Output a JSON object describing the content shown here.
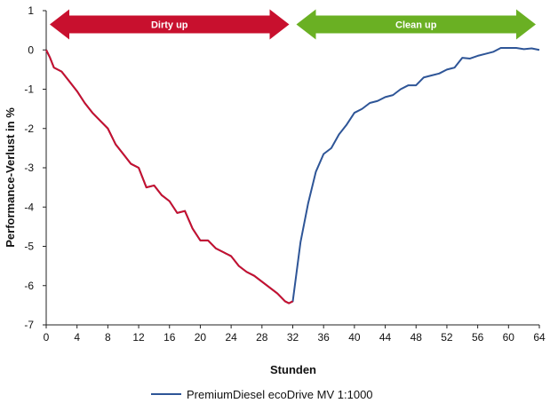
{
  "chart_data": {
    "type": "line",
    "title": "",
    "xlabel": "Stunden",
    "ylabel": "Performance-Verlust in %",
    "xlim": [
      0,
      64
    ],
    "ylim": [
      -7,
      1
    ],
    "x_ticks": [
      0,
      4,
      8,
      12,
      16,
      20,
      24,
      28,
      32,
      36,
      40,
      44,
      48,
      52,
      56,
      60,
      64
    ],
    "y_ticks": [
      1,
      0,
      -1,
      -2,
      -3,
      -4,
      -5,
      -6,
      -7
    ],
    "grid": false,
    "legend_position": "bottom",
    "phases": [
      {
        "label": "Dirty up",
        "x_start": 0,
        "x_end": 32,
        "color": "#c8102e"
      },
      {
        "label": "Clean up",
        "x_start": 32,
        "x_end": 64,
        "color": "#6ab023"
      }
    ],
    "series": [
      {
        "name": "PremiumDiesel ecoDrive MV 1:1000",
        "color": "#2e5597",
        "highlight_color": "#c8102e",
        "highlight_until_x": 32,
        "points": [
          [
            0,
            0
          ],
          [
            0.5,
            -0.2
          ],
          [
            1,
            -0.45
          ],
          [
            2,
            -0.55
          ],
          [
            3,
            -0.8
          ],
          [
            4,
            -1.05
          ],
          [
            5,
            -1.35
          ],
          [
            6,
            -1.6
          ],
          [
            7,
            -1.8
          ],
          [
            8,
            -2.0
          ],
          [
            9,
            -2.4
          ],
          [
            10,
            -2.65
          ],
          [
            11,
            -2.9
          ],
          [
            12,
            -3.0
          ],
          [
            13,
            -3.5
          ],
          [
            14,
            -3.45
          ],
          [
            15,
            -3.7
          ],
          [
            16,
            -3.85
          ],
          [
            17,
            -4.15
          ],
          [
            18,
            -4.1
          ],
          [
            19,
            -4.55
          ],
          [
            20,
            -4.85
          ],
          [
            21,
            -4.85
          ],
          [
            22,
            -5.05
          ],
          [
            23,
            -5.15
          ],
          [
            24,
            -5.25
          ],
          [
            25,
            -5.5
          ],
          [
            26,
            -5.65
          ],
          [
            27,
            -5.75
          ],
          [
            28,
            -5.9
          ],
          [
            29,
            -6.05
          ],
          [
            30,
            -6.2
          ],
          [
            31,
            -6.4
          ],
          [
            31.5,
            -6.45
          ],
          [
            32,
            -6.4
          ],
          [
            33,
            -4.9
          ],
          [
            34,
            -3.9
          ],
          [
            35,
            -3.1
          ],
          [
            36,
            -2.65
          ],
          [
            37,
            -2.5
          ],
          [
            38,
            -2.15
          ],
          [
            39,
            -1.9
          ],
          [
            40,
            -1.6
          ],
          [
            41,
            -1.5
          ],
          [
            42,
            -1.35
          ],
          [
            43,
            -1.3
          ],
          [
            44,
            -1.2
          ],
          [
            45,
            -1.15
          ],
          [
            46,
            -1.0
          ],
          [
            47,
            -0.9
          ],
          [
            48,
            -0.9
          ],
          [
            49,
            -0.7
          ],
          [
            50,
            -0.65
          ],
          [
            51,
            -0.6
          ],
          [
            52,
            -0.5
          ],
          [
            53,
            -0.45
          ],
          [
            54,
            -0.2
          ],
          [
            55,
            -0.22
          ],
          [
            56,
            -0.15
          ],
          [
            57,
            -0.1
          ],
          [
            58,
            -0.05
          ],
          [
            59,
            0.05
          ],
          [
            60,
            0.05
          ],
          [
            61,
            0.05
          ],
          [
            62,
            0.02
          ],
          [
            63,
            0.04
          ],
          [
            64,
            0.0
          ]
        ]
      }
    ]
  }
}
